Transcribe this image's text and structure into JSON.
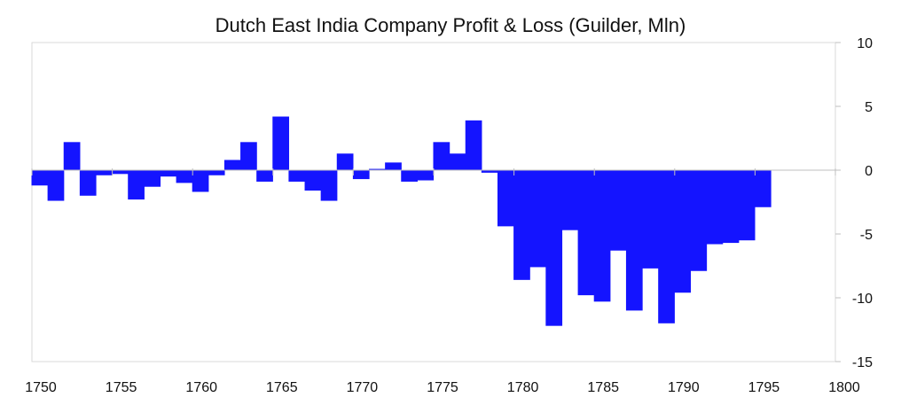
{
  "chart_data": {
    "type": "bar",
    "title": "Dutch East India Company Profit & Loss (Guilder, Mln)",
    "xlabel": "",
    "ylabel": "",
    "xlim": [
      1750,
      1800
    ],
    "ylim": [
      -15,
      10
    ],
    "x_ticks": [
      1750,
      1755,
      1760,
      1765,
      1770,
      1775,
      1780,
      1785,
      1790,
      1795,
      1800
    ],
    "y_ticks": [
      10,
      5,
      0,
      -5,
      -10,
      -15
    ],
    "y_axis_side": "right",
    "bar_color": "#1414ff",
    "gridlines": false,
    "legend": "none",
    "categories": [
      1750,
      1751,
      1752,
      1753,
      1754,
      1755,
      1756,
      1757,
      1758,
      1759,
      1760,
      1761,
      1762,
      1763,
      1764,
      1765,
      1766,
      1767,
      1768,
      1769,
      1770,
      1771,
      1772,
      1773,
      1774,
      1775,
      1776,
      1777,
      1778,
      1779,
      1780,
      1781,
      1782,
      1783,
      1784,
      1785,
      1786,
      1787,
      1788,
      1789,
      1790,
      1791,
      1792,
      1793,
      1794,
      1795
    ],
    "values": [
      -1.2,
      -2.4,
      2.2,
      -2.0,
      -0.4,
      -0.3,
      -2.3,
      -1.3,
      -0.5,
      -1.0,
      -1.7,
      -0.4,
      0.8,
      2.2,
      -0.9,
      4.2,
      -0.9,
      -1.6,
      -2.4,
      1.3,
      -0.7,
      0.1,
      0.6,
      -0.9,
      -0.8,
      2.2,
      1.3,
      3.9,
      -0.2,
      -4.4,
      -8.6,
      -7.6,
      -12.2,
      -4.7,
      -9.8,
      -10.3,
      -6.3,
      -11.0,
      -7.7,
      -12.0,
      -9.6,
      -7.9,
      -5.8,
      -5.7,
      -5.5,
      -2.9
    ]
  }
}
